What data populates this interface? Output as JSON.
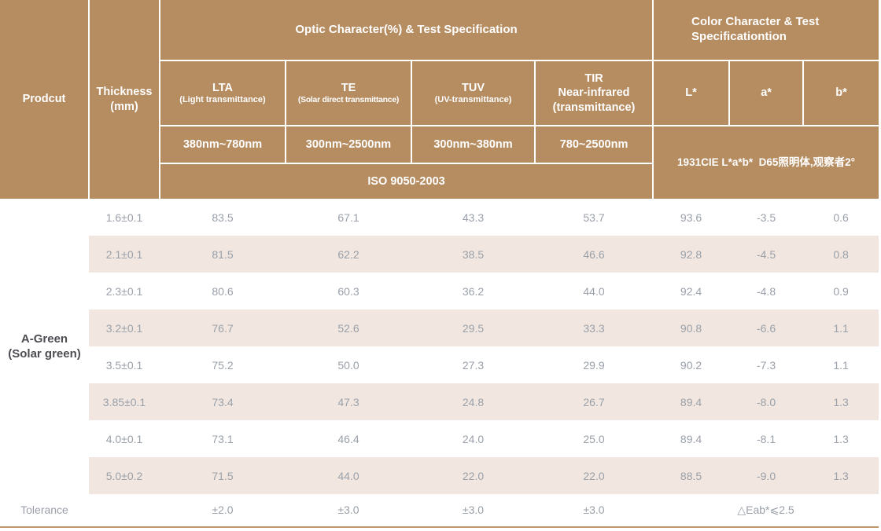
{
  "colors": {
    "header_bg": "#b68c61",
    "stripe_bg": "#f1e7e0",
    "divider": "#ffffff",
    "data_text": "#9aa0a9",
    "product_text": "#4c4c52",
    "bottom_rule": "#bd9669"
  },
  "table": {
    "product_header": "Prodcut",
    "thickness_header": "Thickness\n(mm)",
    "optic_section_title": "Optic Character(%) & Test Specification",
    "color_section_title": "Color Character & Test\nSpecificationtion",
    "optic_columns": [
      {
        "name": "LTA",
        "sub": "(Light transmittance)",
        "range": "380nm~780nm"
      },
      {
        "name": "TE",
        "sub": "(Solar direct transmittance)",
        "range": "300nm~2500nm"
      },
      {
        "name": "TUV",
        "sub": "(UV-transmittance)",
        "range": "300nm~380nm"
      },
      {
        "name": "TIR\nNear-infrared\n(transmittance)",
        "sub": "",
        "range": "780~2500nm"
      }
    ],
    "color_columns": [
      "L*",
      "a*",
      "b*"
    ],
    "iso_standard": "ISO 9050-2003",
    "cie_note": "1931CIE L*a*b*  D65照明体,观察者2°",
    "product_name": "A-Green\n(Solar green)",
    "rows": [
      {
        "thickness": "1.6±0.1",
        "lta": "83.5",
        "te": "67.1",
        "tuv": "43.3",
        "tir": "53.7",
        "L": "93.6",
        "a": "-3.5",
        "b": "0.6"
      },
      {
        "thickness": "2.1±0.1",
        "lta": "81.5",
        "te": "62.2",
        "tuv": "38.5",
        "tir": "46.6",
        "L": "92.8",
        "a": "-4.5",
        "b": "0.8"
      },
      {
        "thickness": "2.3±0.1",
        "lta": "80.6",
        "te": "60.3",
        "tuv": "36.2",
        "tir": "44.0",
        "L": "92.4",
        "a": "-4.8",
        "b": "0.9"
      },
      {
        "thickness": "3.2±0.1",
        "lta": "76.7",
        "te": "52.6",
        "tuv": "29.5",
        "tir": "33.3",
        "L": "90.8",
        "a": "-6.6",
        "b": "1.1"
      },
      {
        "thickness": "3.5±0.1",
        "lta": "75.2",
        "te": "50.0",
        "tuv": "27.3",
        "tir": "29.9",
        "L": "90.2",
        "a": "-7.3",
        "b": "1.1"
      },
      {
        "thickness": "3.85±0.1",
        "lta": "73.4",
        "te": "47.3",
        "tuv": "24.8",
        "tir": "26.7",
        "L": "89.4",
        "a": "-8.0",
        "b": "1.3"
      },
      {
        "thickness": "4.0±0.1",
        "lta": "73.1",
        "te": "46.4",
        "tuv": "24.0",
        "tir": "25.0",
        "L": "89.4",
        "a": "-8.1",
        "b": "1.3"
      },
      {
        "thickness": "5.0±0.2",
        "lta": "71.5",
        "te": "44.0",
        "tuv": "22.0",
        "tir": "22.0",
        "L": "88.5",
        "a": "-9.0",
        "b": "1.3"
      }
    ],
    "tolerance": {
      "label": "Tolerance",
      "lta": "±2.0",
      "te": "±3.0",
      "tuv": "±3.0",
      "tir": "±3.0",
      "eab": "△Eab*⩽2.5"
    }
  }
}
